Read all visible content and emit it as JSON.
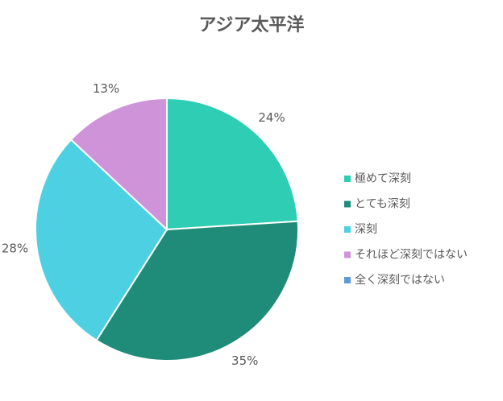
{
  "chart_data": {
    "type": "pie",
    "title": "アジア太平洋",
    "categories": [
      "極めて深刻",
      "とても深刻",
      "深刻",
      "それほど深刻ではない",
      "全く深刻ではない"
    ],
    "values": [
      24,
      35,
      28,
      13,
      0
    ],
    "value_labels": [
      "24%",
      "35%",
      "28%",
      "13%",
      null
    ],
    "colors": [
      "#2ecdb4",
      "#1e8c78",
      "#4dd0e1",
      "#ce93d8",
      "#5b9bd5"
    ],
    "legend": "right"
  }
}
